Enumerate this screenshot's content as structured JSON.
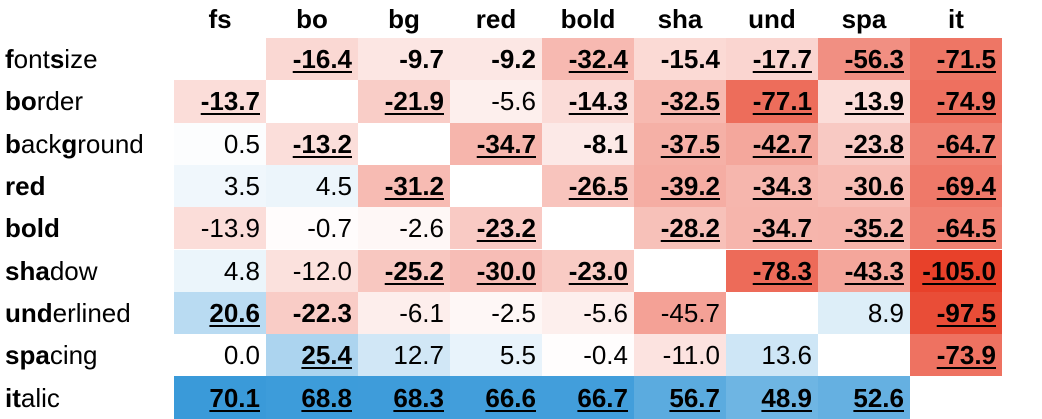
{
  "chart_data": {
    "type": "heatmap",
    "columns": [
      "fs",
      "bo",
      "bg",
      "red",
      "bold",
      "sha",
      "und",
      "spa",
      "it"
    ],
    "rows": [
      {
        "label": "font size",
        "bold_prefix": [
          "f",
          "s"
        ],
        "segments": [
          [
            "f",
            true
          ],
          [
            "ont ",
            false
          ],
          [
            "s",
            true
          ],
          [
            "ize",
            false
          ]
        ]
      },
      {
        "label": "border",
        "segments": [
          [
            "bo",
            true
          ],
          [
            "rder",
            false
          ]
        ]
      },
      {
        "label": "background",
        "segments": [
          [
            "b",
            true
          ],
          [
            "ack",
            false
          ],
          [
            "g",
            true
          ],
          [
            "round",
            false
          ]
        ]
      },
      {
        "label": "red",
        "segments": [
          [
            "red",
            true
          ]
        ]
      },
      {
        "label": "bold",
        "segments": [
          [
            "bold",
            true
          ]
        ]
      },
      {
        "label": "shadow",
        "segments": [
          [
            "sha",
            true
          ],
          [
            "dow",
            false
          ]
        ]
      },
      {
        "label": "underlined",
        "segments": [
          [
            "und",
            true
          ],
          [
            "erlined",
            false
          ]
        ]
      },
      {
        "label": "spacing",
        "segments": [
          [
            "spa",
            true
          ],
          [
            "cing",
            false
          ]
        ]
      },
      {
        "label": "italic",
        "segments": [
          [
            "it",
            true
          ],
          [
            "alic",
            false
          ]
        ]
      }
    ],
    "values": [
      [
        null,
        -16.4,
        -9.7,
        -9.2,
        -32.4,
        -15.4,
        -17.7,
        -56.3,
        -71.5
      ],
      [
        -13.7,
        null,
        -21.9,
        -5.6,
        -14.3,
        -32.5,
        -77.1,
        -13.9,
        -74.9
      ],
      [
        0.5,
        -13.2,
        null,
        -34.7,
        -8.1,
        -37.5,
        -42.7,
        -23.8,
        -64.7
      ],
      [
        3.5,
        4.5,
        -31.2,
        null,
        -26.5,
        -39.2,
        -34.3,
        -30.6,
        -69.4
      ],
      [
        -13.9,
        -0.7,
        -2.6,
        -23.2,
        null,
        -28.2,
        -34.7,
        -35.2,
        -64.5
      ],
      [
        4.8,
        -12.0,
        -25.2,
        -30.0,
        -23.0,
        null,
        -78.3,
        -43.3,
        -105.0
      ],
      [
        20.6,
        -22.3,
        -6.1,
        -2.5,
        -5.6,
        -45.7,
        null,
        8.9,
        -97.5
      ],
      [
        0.0,
        25.4,
        12.7,
        5.5,
        -0.4,
        -11.0,
        13.6,
        null,
        -73.9
      ],
      [
        70.1,
        68.8,
        68.3,
        66.6,
        66.7,
        56.7,
        48.9,
        52.6,
        null
      ]
    ],
    "display": [
      [
        "",
        "-16.4",
        "-9.7",
        "-9.2",
        "-32.4",
        "-15.4",
        "-17.7",
        "-56.3",
        "-71.5"
      ],
      [
        "-13.7",
        "",
        "-21.9",
        "-5.6",
        "-14.3",
        "-32.5",
        "-77.1",
        "-13.9",
        "-74.9"
      ],
      [
        "0.5",
        "-13.2",
        "",
        "-34.7",
        "-8.1",
        "-37.5",
        "-42.7",
        "-23.8",
        "-64.7"
      ],
      [
        "3.5",
        "4.5",
        "-31.2",
        "",
        "-26.5",
        "-39.2",
        "-34.3",
        "-30.6",
        "-69.4"
      ],
      [
        "-13.9",
        "-0.7",
        "-2.6",
        "-23.2",
        "",
        "-28.2",
        "-34.7",
        "-35.2",
        "-64.5"
      ],
      [
        "4.8",
        "-12.0",
        "-25.2",
        "-30.0",
        "-23.0",
        "",
        "-78.3",
        "-43.3",
        "-105.0"
      ],
      [
        "20.6",
        "-22.3",
        "-6.1",
        "-2.5",
        "-5.6",
        "-45.7",
        "",
        "8.9",
        "-97.5"
      ],
      [
        "0.0",
        "25.4",
        "12.7",
        "5.5",
        "-0.4",
        "-11.0",
        "13.6",
        "",
        "-73.9"
      ],
      [
        "70.1",
        "68.8",
        "68.3",
        "66.6",
        "66.7",
        "56.7",
        "48.9",
        "52.6",
        ""
      ]
    ],
    "bold": [
      [
        false,
        true,
        true,
        true,
        true,
        true,
        true,
        true,
        true
      ],
      [
        true,
        false,
        true,
        false,
        true,
        true,
        true,
        true,
        true
      ],
      [
        false,
        true,
        false,
        true,
        true,
        true,
        true,
        true,
        true
      ],
      [
        false,
        false,
        true,
        false,
        true,
        true,
        true,
        true,
        true
      ],
      [
        false,
        false,
        false,
        true,
        false,
        true,
        true,
        true,
        true
      ],
      [
        false,
        false,
        true,
        true,
        true,
        false,
        true,
        true,
        true
      ],
      [
        true,
        true,
        false,
        false,
        false,
        false,
        false,
        false,
        true
      ],
      [
        false,
        true,
        false,
        false,
        false,
        false,
        false,
        false,
        true
      ],
      [
        true,
        true,
        true,
        true,
        true,
        true,
        true,
        true,
        false
      ]
    ],
    "underline": [
      [
        false,
        true,
        false,
        false,
        true,
        false,
        true,
        true,
        true
      ],
      [
        true,
        false,
        true,
        false,
        true,
        true,
        true,
        true,
        true
      ],
      [
        false,
        true,
        false,
        true,
        false,
        true,
        true,
        true,
        true
      ],
      [
        false,
        false,
        true,
        false,
        true,
        true,
        true,
        true,
        true
      ],
      [
        false,
        false,
        false,
        true,
        false,
        true,
        true,
        true,
        true
      ],
      [
        false,
        false,
        true,
        true,
        true,
        false,
        true,
        true,
        true
      ],
      [
        true,
        false,
        false,
        false,
        false,
        false,
        false,
        false,
        true
      ],
      [
        false,
        true,
        false,
        false,
        false,
        false,
        false,
        false,
        true
      ],
      [
        true,
        true,
        true,
        true,
        true,
        true,
        true,
        true,
        false
      ]
    ],
    "color_scale": {
      "negative": "#E8412A",
      "neutral": "#FFFFFF",
      "positive": "#3A9AD9",
      "min": -105.0,
      "max": 70.1
    }
  }
}
